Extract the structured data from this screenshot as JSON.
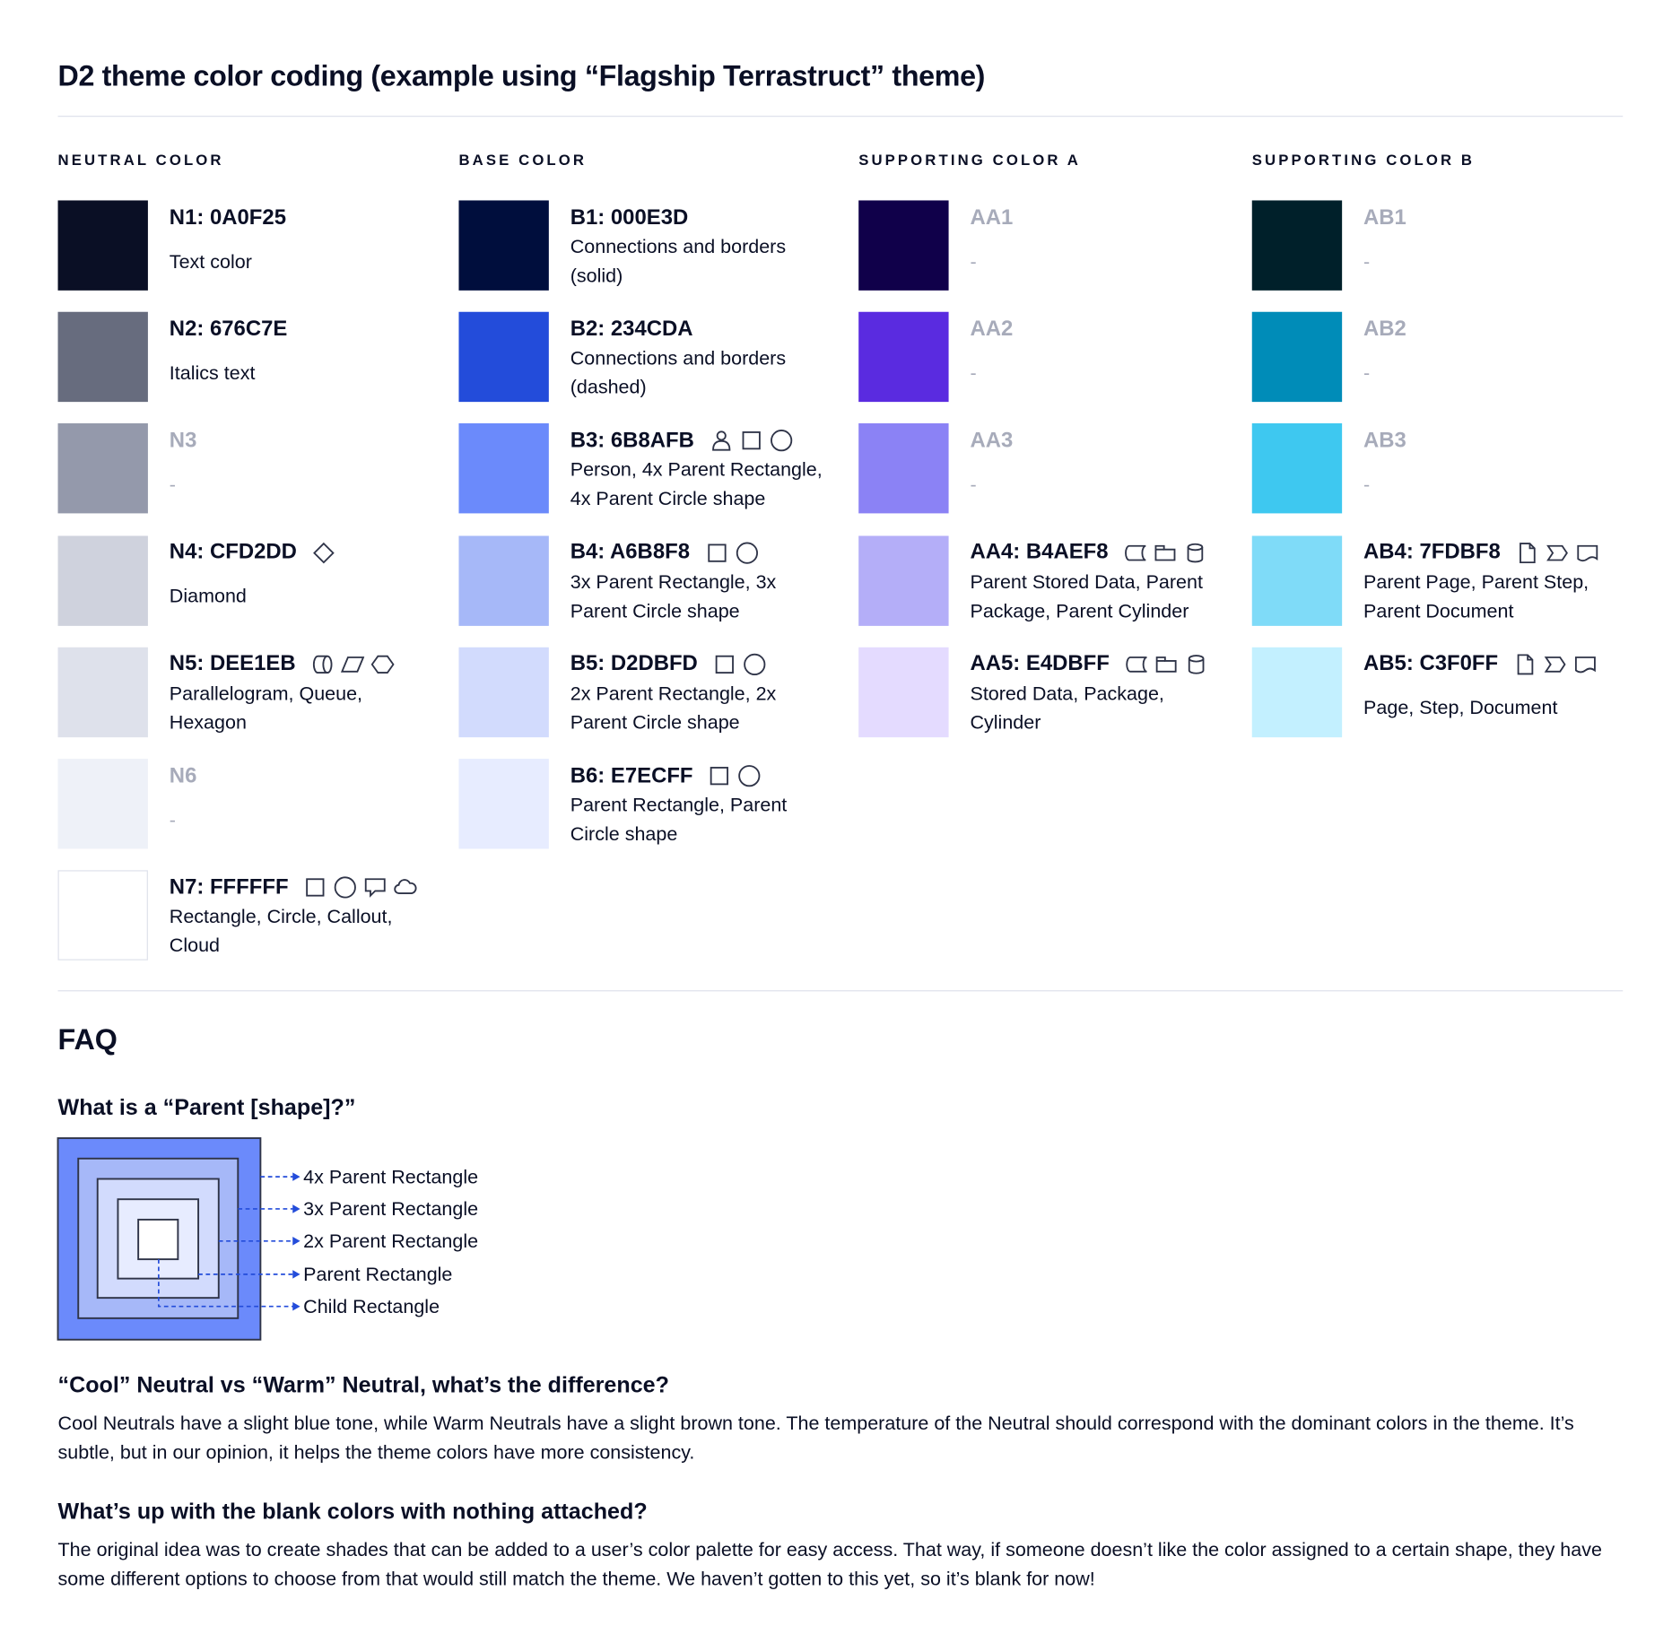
{
  "title": "D2 theme color coding (example using “Flagship Terrastruct” theme)",
  "columns": [
    {
      "heading": "NEUTRAL COLOR",
      "items": [
        {
          "label": "N1: 0A0F25",
          "color": "#0A0F25",
          "desc": "Text color",
          "icons": []
        },
        {
          "label": "N2: 676C7E",
          "color": "#676C7E",
          "desc": "Italics text",
          "icons": []
        },
        {
          "label": "N3",
          "color": "#9499AB",
          "desc": "-",
          "blank": true,
          "icons": []
        },
        {
          "label": "N4: CFD2DD",
          "color": "#CFD2DD",
          "desc": "Diamond",
          "icons": [
            "diamond-icon"
          ]
        },
        {
          "label": "N5: DEE1EB",
          "color": "#DEE1EB",
          "desc": "Parallelogram, Queue, Hexagon",
          "icons": [
            "queue-icon",
            "parallelogram-icon",
            "hexagon-icon"
          ]
        },
        {
          "label": "N6",
          "color": "#EEF1F8",
          "desc": "-",
          "blank": true,
          "icons": []
        },
        {
          "label": "N7: FFFFFF",
          "color": "#FFFFFF",
          "desc": "Rectangle, Circle, Callout, Cloud",
          "icons": [
            "square-icon",
            "circle-icon",
            "callout-icon",
            "cloud-icon"
          ]
        }
      ]
    },
    {
      "heading": "BASE COLOR",
      "items": [
        {
          "label": "B1: 000E3D",
          "color": "#000E3D",
          "desc": "Connections and borders (solid)",
          "icons": []
        },
        {
          "label": "B2: 234CDA",
          "color": "#234CDA",
          "desc": "Connections and borders (dashed)",
          "icons": []
        },
        {
          "label": "B3: 6B8AFB",
          "color": "#6B8AFB",
          "desc": "Person, 4x Parent Rectangle, 4x Parent Circle shape",
          "icons": [
            "person-icon",
            "square-icon",
            "circle-icon"
          ]
        },
        {
          "label": "B4: A6B8F8",
          "color": "#A6B8F8",
          "desc": "3x Parent Rectangle, 3x Parent Circle shape",
          "icons": [
            "square-icon",
            "circle-icon"
          ]
        },
        {
          "label": "B5: D2DBFD",
          "color": "#D2DBFD",
          "desc": "2x Parent Rectangle, 2x Parent Circle shape",
          "icons": [
            "square-icon",
            "circle-icon"
          ]
        },
        {
          "label": "B6: E7ECFF",
          "color": "#E7ECFF",
          "desc": "Parent Rectangle, Parent Circle shape",
          "icons": [
            "square-icon",
            "circle-icon"
          ]
        }
      ]
    },
    {
      "heading": "SUPPORTING COLOR A",
      "items": [
        {
          "label": "AA1",
          "color": "#10004A",
          "desc": "-",
          "blank": true,
          "icons": []
        },
        {
          "label": "AA2",
          "color": "#5A2BE0",
          "desc": "-",
          "blank": true,
          "icons": []
        },
        {
          "label": "AA3",
          "color": "#8B82F5",
          "desc": "-",
          "blank": true,
          "icons": []
        },
        {
          "label": "AA4: B4AEF8",
          "color": "#B4AEF8",
          "desc": "Parent Stored Data, Parent Package,  Parent Cylinder",
          "icons": [
            "stored-data-icon",
            "package-icon",
            "cylinder-icon"
          ]
        },
        {
          "label": "AA5: E4DBFF",
          "color": "#E4DBFF",
          "desc": "Stored Data, Package, Cylinder",
          "icons": [
            "stored-data-icon",
            "package-icon",
            "cylinder-icon"
          ]
        }
      ]
    },
    {
      "heading": "SUPPORTING COLOR B",
      "items": [
        {
          "label": "AB1",
          "color": "#00202A",
          "desc": "-",
          "blank": true,
          "icons": []
        },
        {
          "label": "AB2",
          "color": "#008CB8",
          "desc": "-",
          "blank": true,
          "icons": []
        },
        {
          "label": "AB3",
          "color": "#3EC8F0",
          "desc": "-",
          "blank": true,
          "icons": []
        },
        {
          "label": "AB4: 7FDBF8",
          "color": "#7FDBF8",
          "desc": "Parent Page, Parent Step, Parent Document",
          "icons": [
            "page-icon",
            "step-icon",
            "document-icon"
          ]
        },
        {
          "label": "AB5: C3F0FF",
          "color": "#C3F0FF",
          "desc": "Page, Step, Document",
          "icons": [
            "page-icon",
            "step-icon",
            "document-icon"
          ]
        }
      ]
    }
  ],
  "faq": {
    "heading": "FAQ",
    "q1": "What is a “Parent [shape]?”",
    "diagram_labels": [
      "4x Parent Rectangle",
      "3x Parent Rectangle",
      "2x Parent Rectangle",
      "Parent Rectangle",
      "Child Rectangle"
    ],
    "diagram_colors": [
      "#6B8AFB",
      "#A6B8F8",
      "#D2DBFD",
      "#E7ECFF",
      "#FFFFFF"
    ],
    "arrow_color": "#234CDA",
    "q2": "“Cool” Neutral vs “Warm” Neutral, what’s the difference?",
    "a2": "Cool Neutrals have a slight blue tone, while Warm Neutrals have a slight brown tone. The temperature of the Neutral should correspond with the dominant colors in the theme. It’s subtle, but in our opinion, it helps the theme colors have more consistency.",
    "q3": "What’s up with the blank colors with nothing attached?",
    "a3": "The original idea was to create shades that can be added to a user’s color palette for easy access. That way, if someone doesn’t like the color assigned to a certain shape, they have some different options to choose from that would still match the theme. We haven’t gotten to this yet, so it’s blank for now!"
  }
}
